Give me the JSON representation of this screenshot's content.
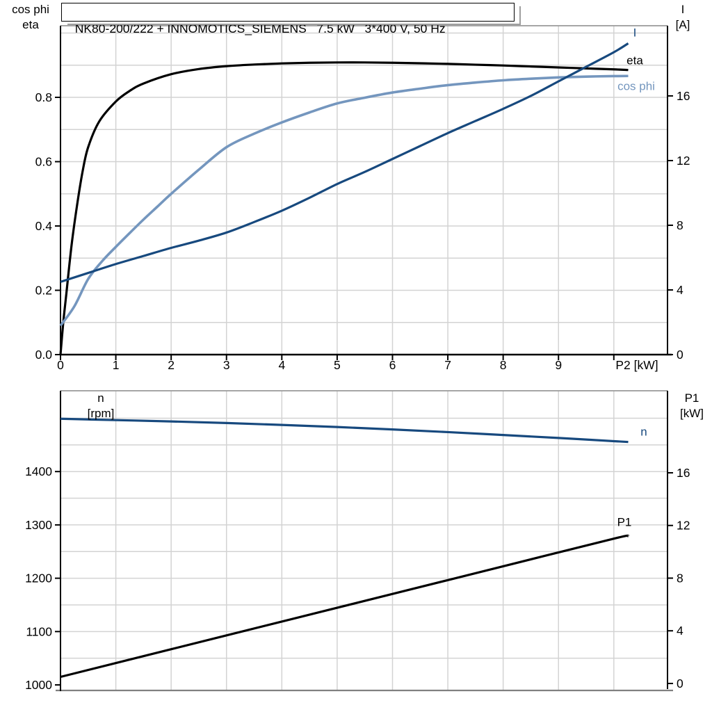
{
  "title": "NK80-200/222 + INNOMOTICS_SIEMENS   7.5 kW   3*400 V, 50 Hz",
  "axis_corner_labels": {
    "top_left": [
      "cos phi",
      "eta"
    ],
    "top_right": [
      "I",
      "[A]"
    ],
    "mid_left": [
      "n",
      "[rpm]"
    ],
    "mid_right": [
      "P1",
      "[kW]"
    ]
  },
  "colors": {
    "black": "#000000",
    "dark_blue": "#17497e",
    "light_blue": "#7496be",
    "grid": "#d3d3d3",
    "border": "#9a9a9a"
  },
  "chart_data": [
    {
      "type": "line",
      "title": "NK80-200/222 + INNOMOTICS_SIEMENS   7.5 kW   3*400 V, 50 Hz",
      "x_axis": {
        "label": "P2 [kW]",
        "min": 0,
        "max": 10.97,
        "ticks": [
          0,
          1,
          2,
          3,
          4,
          5,
          6,
          7,
          8,
          9,
          10
        ],
        "tick_labels": [
          "0",
          "1",
          "2",
          "3",
          "4",
          "5",
          "6",
          "7",
          "8",
          "9",
          ""
        ]
      },
      "y_left": {
        "label": "cos phi / eta",
        "min": 0,
        "max": 1.0227,
        "ticks": [
          0,
          0.2,
          0.4,
          0.6,
          0.8
        ],
        "tick_labels": [
          "0.0",
          "0.2",
          "0.4",
          "0.6",
          "0.8"
        ]
      },
      "y_right": {
        "label": "I [A]",
        "min": 0,
        "max": 20.34,
        "ticks": [
          0,
          4,
          8,
          12,
          16
        ],
        "tick_labels": [
          "0",
          "4",
          "8",
          "12",
          "16"
        ]
      },
      "grid": {
        "v": [
          1,
          2,
          3,
          4,
          5,
          6,
          7,
          8,
          9,
          10
        ],
        "h": [
          0.1,
          0.2,
          0.3,
          0.4,
          0.5,
          0.6,
          0.7,
          0.8,
          0.9,
          1.0
        ]
      },
      "series": [
        {
          "name": "eta",
          "label": "eta",
          "axis": "left",
          "color": "black",
          "x": [
            0,
            0.05,
            0.1,
            0.2,
            0.3,
            0.4,
            0.5,
            0.7,
            1,
            1.25,
            1.5,
            2,
            2.5,
            3,
            3.5,
            4,
            4.5,
            5,
            5.5,
            6,
            6.5,
            7,
            7.5,
            8,
            8.5,
            9,
            9.5,
            10,
            10.26
          ],
          "y": [
            0,
            0.1,
            0.18,
            0.34,
            0.465,
            0.57,
            0.645,
            0.725,
            0.787,
            0.82,
            0.843,
            0.872,
            0.888,
            0.897,
            0.902,
            0.9055,
            0.9075,
            0.9085,
            0.9085,
            0.9075,
            0.906,
            0.904,
            0.9015,
            0.899,
            0.896,
            0.893,
            0.89,
            0.887,
            0.885
          ]
        },
        {
          "name": "cos-phi",
          "label": "cos phi",
          "axis": "left",
          "color": "light_blue",
          "x": [
            0,
            0.25,
            0.5,
            0.75,
            1,
            1.25,
            1.5,
            1.75,
            2,
            2.5,
            3,
            3.5,
            4,
            4.5,
            5,
            5.5,
            6,
            6.5,
            7,
            7.5,
            8,
            8.5,
            9,
            9.5,
            10,
            10.26
          ],
          "y": [
            0.09,
            0.15,
            0.235,
            0.29,
            0.335,
            0.378,
            0.42,
            0.46,
            0.5,
            0.575,
            0.645,
            0.687,
            0.722,
            0.753,
            0.781,
            0.799,
            0.815,
            0.827,
            0.838,
            0.846,
            0.853,
            0.858,
            0.862,
            0.8645,
            0.866,
            0.8665
          ]
        },
        {
          "name": "current",
          "label": "I",
          "axis": "right",
          "color": "dark_blue",
          "x": [
            0,
            0.5,
            1,
            1.5,
            2,
            2.5,
            3,
            3.5,
            4,
            4.5,
            5,
            5.5,
            6,
            6.5,
            7,
            7.5,
            8,
            8.5,
            9,
            9.5,
            10,
            10.26
          ],
          "y": [
            4.5,
            5.05,
            5.6,
            6.1,
            6.6,
            7.05,
            7.55,
            8.2,
            8.9,
            9.7,
            10.55,
            11.3,
            12.1,
            12.9,
            13.7,
            14.45,
            15.2,
            16.0,
            16.9,
            17.8,
            18.7,
            19.25
          ]
        }
      ]
    },
    {
      "type": "line",
      "title": "",
      "x_axis": {
        "label": "",
        "min": 0,
        "max": 10.97,
        "ticks": [],
        "tick_labels": []
      },
      "y_left": {
        "label": "n [rpm]",
        "min": 989.6,
        "max": 1551.5,
        "ticks": [
          1000,
          1100,
          1200,
          1300,
          1400
        ],
        "tick_labels": [
          "1000",
          "1100",
          "1200",
          "1300",
          "1400"
        ]
      },
      "y_right": {
        "label": "P1 [kW]",
        "min": -0.53,
        "max": 22.23,
        "ticks": [
          0,
          4,
          8,
          12,
          16
        ],
        "tick_labels": [
          "0",
          "4",
          "8",
          "12",
          "16"
        ]
      },
      "grid": {
        "v": [
          1,
          2,
          3,
          4,
          5,
          6,
          7,
          8,
          9,
          10
        ],
        "h": [
          1050,
          1100,
          1150,
          1200,
          1250,
          1300,
          1350,
          1400,
          1450,
          1500
        ]
      },
      "series": [
        {
          "name": "speed",
          "label": "n",
          "axis": "left",
          "color": "dark_blue",
          "x": [
            0,
            1,
            2,
            3,
            4,
            5,
            6,
            7,
            8,
            9,
            10,
            10.26
          ],
          "y": [
            1499,
            1496.5,
            1494,
            1491,
            1487.5,
            1483.5,
            1479,
            1474,
            1468.5,
            1463,
            1457,
            1455.5
          ]
        },
        {
          "name": "input-power",
          "label": "P1",
          "axis": "right",
          "color": "black",
          "x": [
            0,
            2,
            4,
            6,
            8,
            10,
            10.26
          ],
          "y": [
            0.5,
            2.6,
            4.7,
            6.8,
            8.9,
            11.0,
            11.2
          ]
        }
      ]
    }
  ]
}
